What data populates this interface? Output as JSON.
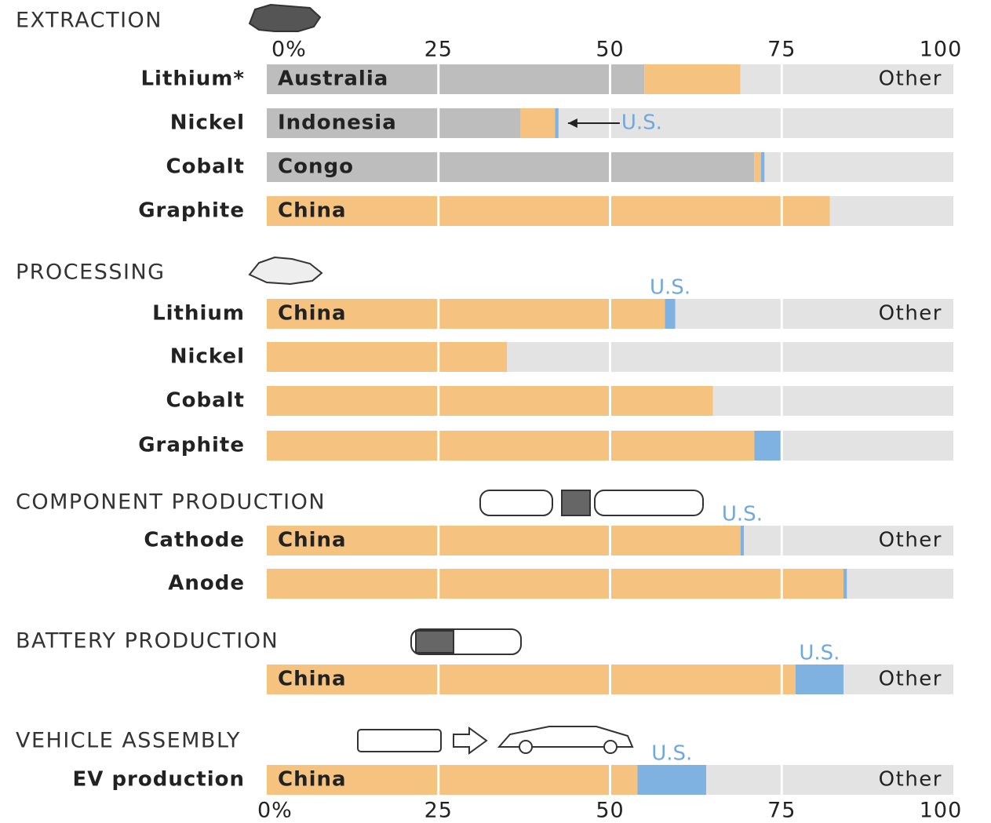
{
  "chart_data": {
    "type": "bar",
    "orientation": "horizontal",
    "stacked": true,
    "xlim": [
      0,
      100
    ],
    "xticks": [
      {
        "value": 0,
        "label": "0%"
      },
      25,
      50,
      75,
      100
    ],
    "sections": [
      {
        "title": "EXTRACTION",
        "rows": [
          {
            "label": "Lithium*",
            "segments": [
              {
                "name": "Australia",
                "value": 55,
                "color": "#bdbdbd"
              },
              {
                "value": 14,
                "color": "#f5c27f"
              },
              {
                "name": "Other",
                "value": 31,
                "color": "#e3e3e3"
              }
            ]
          },
          {
            "label": "Nickel",
            "segments": [
              {
                "name": "Indonesia",
                "value": 37,
                "color": "#bdbdbd"
              },
              {
                "value": 5,
                "color": "#f5c27f"
              },
              {
                "name": "U.S.",
                "value": 0.5,
                "color": "#7fb2e0"
              },
              {
                "value": 57.5,
                "color": "#e3e3e3"
              }
            ]
          },
          {
            "label": "Cobalt",
            "segments": [
              {
                "name": "Congo",
                "value": 71,
                "color": "#bdbdbd"
              },
              {
                "value": 1,
                "color": "#f5c27f"
              },
              {
                "value": 0.5,
                "color": "#7fb2e0"
              },
              {
                "value": 27.5,
                "color": "#e3e3e3"
              }
            ]
          },
          {
            "label": "Graphite",
            "segments": [
              {
                "name": "China",
                "value": 82,
                "color": "#f5c27f"
              },
              {
                "value": 18,
                "color": "#e3e3e3"
              }
            ]
          }
        ]
      },
      {
        "title": "PROCESSING",
        "rows": [
          {
            "label": "Lithium",
            "segments": [
              {
                "name": "China",
                "value": 58,
                "color": "#f5c27f"
              },
              {
                "name": "U.S.",
                "value": 1.5,
                "color": "#7fb2e0"
              },
              {
                "name": "Other",
                "value": 40.5,
                "color": "#e3e3e3"
              }
            ]
          },
          {
            "label": "Nickel",
            "segments": [
              {
                "value": 35,
                "color": "#f5c27f"
              },
              {
                "value": 65,
                "color": "#e3e3e3"
              }
            ]
          },
          {
            "label": "Cobalt",
            "segments": [
              {
                "value": 65,
                "color": "#f5c27f"
              },
              {
                "value": 35,
                "color": "#e3e3e3"
              }
            ]
          },
          {
            "label": "Graphite",
            "segments": [
              {
                "value": 71,
                "color": "#f5c27f"
              },
              {
                "value": 4,
                "color": "#7fb2e0"
              },
              {
                "value": 25,
                "color": "#e3e3e3"
              }
            ]
          }
        ]
      },
      {
        "title": "COMPONENT PRODUCTION",
        "rows": [
          {
            "label": "Cathode",
            "segments": [
              {
                "name": "China",
                "value": 69,
                "color": "#f5c27f"
              },
              {
                "name": "U.S.",
                "value": 0.5,
                "color": "#7fb2e0"
              },
              {
                "name": "Other",
                "value": 30.5,
                "color": "#e3e3e3"
              }
            ]
          },
          {
            "label": "Anode",
            "segments": [
              {
                "value": 84,
                "color": "#f5c27f"
              },
              {
                "value": 0.5,
                "color": "#7fb2e0"
              },
              {
                "value": 15.5,
                "color": "#e3e3e3"
              }
            ]
          }
        ]
      },
      {
        "title": "BATTERY PRODUCTION",
        "rows": [
          {
            "segments": [
              {
                "name": "China",
                "value": 77,
                "color": "#f5c27f"
              },
              {
                "name": "U.S.",
                "value": 7,
                "color": "#7fb2e0"
              },
              {
                "name": "Other",
                "value": 16,
                "color": "#e3e3e3"
              }
            ]
          }
        ]
      },
      {
        "title": "VEHICLE ASSEMBLY",
        "rows": [
          {
            "label": "EV production",
            "segments": [
              {
                "name": "China",
                "value": 54,
                "color": "#f5c27f"
              },
              {
                "name": "U.S.",
                "value": 10,
                "color": "#7fb2e0"
              },
              {
                "name": "Other",
                "value": 36,
                "color": "#e3e3e3"
              }
            ]
          }
        ]
      }
    ]
  }
}
